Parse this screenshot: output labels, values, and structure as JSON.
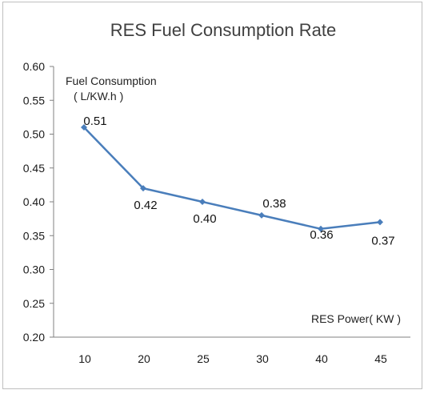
{
  "chart_data": {
    "type": "line",
    "title": "RES Fuel Consumption Rate",
    "ylabel": "Fuel Consumption",
    "yunit": "( L/KW.h )",
    "xlabel": "RES Power( KW )",
    "categories": [
      "10",
      "20",
      "25",
      "30",
      "40",
      "45"
    ],
    "series": [
      {
        "values": [
          0.51,
          0.42,
          0.4,
          0.38,
          0.36,
          0.37
        ],
        "color": "#4a7ebb"
      }
    ],
    "data_labels": [
      "0.51",
      "0.42",
      "0.40",
      "0.38",
      "0.36",
      "0.37"
    ],
    "yticks": [
      "0.60",
      "0.55",
      "0.50",
      "0.45",
      "0.40",
      "0.35",
      "0.30",
      "0.25",
      "0.20"
    ],
    "ylim": [
      0.2,
      0.6
    ],
    "grid": false,
    "legend": "none"
  }
}
